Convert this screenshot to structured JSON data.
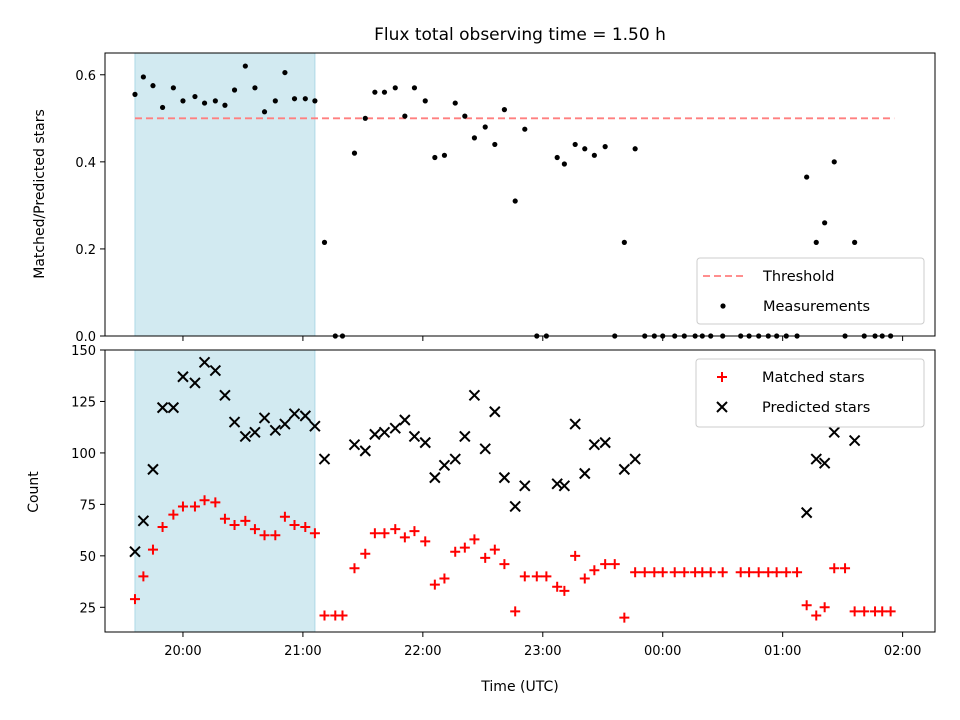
{
  "chart_data": {
    "title": "Flux total observing time = 1.50 h",
    "xlabel": "Time (UTC)",
    "x_ticks": [
      "20:00",
      "21:00",
      "22:00",
      "23:00",
      "00:00",
      "01:00",
      "02:00"
    ],
    "x_tick_hours": [
      20,
      21,
      22,
      23,
      24,
      25,
      26
    ],
    "xlim_hours": [
      19.35,
      26.27
    ],
    "shaded_interval_hours": [
      19.6,
      21.1
    ],
    "shade_color": "#add8e6",
    "panels": [
      {
        "type": "scatter",
        "ylabel": "Matched/Predicted stars",
        "ylim": [
          0,
          0.65
        ],
        "y_ticks": [
          0.0,
          0.2,
          0.4,
          0.6
        ],
        "y_tick_labels": [
          "0.0",
          "0.2",
          "0.4",
          "0.6"
        ],
        "legend_position": "lower-right",
        "threshold": {
          "name": "Threshold",
          "value": 0.5,
          "x_range_hours": [
            19.6,
            25.93
          ],
          "color": "#ff7f7f",
          "style": "dashed"
        },
        "series": [
          {
            "name": "Measurements",
            "color": "#000000",
            "marker": "dot",
            "points": [
              [
                19.6,
                0.555
              ],
              [
                19.67,
                0.595
              ],
              [
                19.75,
                0.575
              ],
              [
                19.83,
                0.525
              ],
              [
                19.92,
                0.57
              ],
              [
                20.0,
                0.54
              ],
              [
                20.1,
                0.55
              ],
              [
                20.18,
                0.535
              ],
              [
                20.27,
                0.54
              ],
              [
                20.35,
                0.53
              ],
              [
                20.43,
                0.565
              ],
              [
                20.52,
                0.62
              ],
              [
                20.6,
                0.57
              ],
              [
                20.68,
                0.515
              ],
              [
                20.77,
                0.54
              ],
              [
                20.85,
                0.605
              ],
              [
                20.93,
                0.545
              ],
              [
                21.02,
                0.545
              ],
              [
                21.1,
                0.54
              ],
              [
                21.18,
                0.215
              ],
              [
                21.27,
                0.0
              ],
              [
                21.33,
                0.0
              ],
              [
                21.43,
                0.42
              ],
              [
                21.52,
                0.5
              ],
              [
                21.6,
                0.56
              ],
              [
                21.68,
                0.56
              ],
              [
                21.77,
                0.57
              ],
              [
                21.85,
                0.505
              ],
              [
                21.93,
                0.57
              ],
              [
                22.02,
                0.54
              ],
              [
                22.1,
                0.41
              ],
              [
                22.18,
                0.415
              ],
              [
                22.27,
                0.535
              ],
              [
                22.35,
                0.505
              ],
              [
                22.43,
                0.455
              ],
              [
                22.52,
                0.48
              ],
              [
                22.6,
                0.44
              ],
              [
                22.68,
                0.52
              ],
              [
                22.77,
                0.31
              ],
              [
                22.85,
                0.475
              ],
              [
                22.95,
                0.0
              ],
              [
                23.03,
                0.0
              ],
              [
                23.12,
                0.41
              ],
              [
                23.18,
                0.395
              ],
              [
                23.27,
                0.44
              ],
              [
                23.35,
                0.43
              ],
              [
                23.43,
                0.415
              ],
              [
                23.52,
                0.435
              ],
              [
                23.6,
                0.0
              ],
              [
                23.68,
                0.215
              ],
              [
                23.77,
                0.43
              ],
              [
                23.85,
                0.0
              ],
              [
                23.93,
                0.0
              ],
              [
                24.0,
                0.0
              ],
              [
                24.1,
                0.0
              ],
              [
                24.18,
                0.0
              ],
              [
                24.27,
                0.0
              ],
              [
                24.33,
                0.0
              ],
              [
                24.4,
                0.0
              ],
              [
                24.5,
                0.0
              ],
              [
                24.65,
                0.0
              ],
              [
                24.72,
                0.0
              ],
              [
                24.8,
                0.0
              ],
              [
                24.88,
                0.0
              ],
              [
                24.95,
                0.0
              ],
              [
                25.03,
                0.0
              ],
              [
                25.12,
                0.0
              ],
              [
                25.2,
                0.365
              ],
              [
                25.28,
                0.215
              ],
              [
                25.35,
                0.26
              ],
              [
                25.43,
                0.4
              ],
              [
                25.52,
                0.0
              ],
              [
                25.6,
                0.215
              ],
              [
                25.68,
                0.0
              ],
              [
                25.77,
                0.0
              ],
              [
                25.83,
                0.0
              ],
              [
                25.9,
                0.0
              ]
            ]
          }
        ]
      },
      {
        "type": "scatter",
        "ylabel": "Count",
        "ylim": [
          13,
          150
        ],
        "y_ticks": [
          25,
          50,
          75,
          100,
          125,
          150
        ],
        "y_tick_labels": [
          "25",
          "50",
          "75",
          "100",
          "125",
          "150"
        ],
        "legend_position": "upper-right",
        "series": [
          {
            "name": "Matched stars",
            "color": "#ff0000",
            "marker": "plus",
            "points": [
              [
                19.6,
                29
              ],
              [
                19.67,
                40
              ],
              [
                19.75,
                53
              ],
              [
                19.83,
                64
              ],
              [
                19.92,
                70
              ],
              [
                20.0,
                74
              ],
              [
                20.1,
                74
              ],
              [
                20.18,
                77
              ],
              [
                20.27,
                76
              ],
              [
                20.35,
                68
              ],
              [
                20.43,
                65
              ],
              [
                20.52,
                67
              ],
              [
                20.6,
                63
              ],
              [
                20.68,
                60
              ],
              [
                20.77,
                60
              ],
              [
                20.85,
                69
              ],
              [
                20.93,
                65
              ],
              [
                21.02,
                64
              ],
              [
                21.1,
                61
              ],
              [
                21.18,
                21
              ],
              [
                21.27,
                21
              ],
              [
                21.33,
                21
              ],
              [
                21.43,
                44
              ],
              [
                21.52,
                51
              ],
              [
                21.6,
                61
              ],
              [
                21.68,
                61
              ],
              [
                21.77,
                63
              ],
              [
                21.85,
                59
              ],
              [
                21.93,
                62
              ],
              [
                22.02,
                57
              ],
              [
                22.1,
                36
              ],
              [
                22.18,
                39
              ],
              [
                22.27,
                52
              ],
              [
                22.35,
                54
              ],
              [
                22.43,
                58
              ],
              [
                22.52,
                49
              ],
              [
                22.6,
                53
              ],
              [
                22.68,
                46
              ],
              [
                22.77,
                23
              ],
              [
                22.85,
                40
              ],
              [
                22.95,
                40
              ],
              [
                23.03,
                40
              ],
              [
                23.12,
                35
              ],
              [
                23.18,
                33
              ],
              [
                23.27,
                50
              ],
              [
                23.35,
                39
              ],
              [
                23.43,
                43
              ],
              [
                23.52,
                46
              ],
              [
                23.6,
                46
              ],
              [
                23.68,
                20
              ],
              [
                23.77,
                42
              ],
              [
                23.85,
                42
              ],
              [
                23.93,
                42
              ],
              [
                24.0,
                42
              ],
              [
                24.1,
                42
              ],
              [
                24.18,
                42
              ],
              [
                24.27,
                42
              ],
              [
                24.33,
                42
              ],
              [
                24.4,
                42
              ],
              [
                24.5,
                42
              ],
              [
                24.65,
                42
              ],
              [
                24.72,
                42
              ],
              [
                24.8,
                42
              ],
              [
                24.88,
                42
              ],
              [
                24.95,
                42
              ],
              [
                25.03,
                42
              ],
              [
                25.12,
                42
              ],
              [
                25.2,
                26
              ],
              [
                25.28,
                21
              ],
              [
                25.35,
                25
              ],
              [
                25.43,
                44
              ],
              [
                25.52,
                44
              ],
              [
                25.6,
                23
              ],
              [
                25.68,
                23
              ],
              [
                25.77,
                23
              ],
              [
                25.83,
                23
              ],
              [
                25.9,
                23
              ]
            ]
          },
          {
            "name": "Predicted stars",
            "color": "#000000",
            "marker": "x",
            "points": [
              [
                19.6,
                52
              ],
              [
                19.67,
                67
              ],
              [
                19.75,
                92
              ],
              [
                19.83,
                122
              ],
              [
                19.92,
                122
              ],
              [
                20.0,
                137
              ],
              [
                20.1,
                134
              ],
              [
                20.18,
                144
              ],
              [
                20.27,
                140
              ],
              [
                20.35,
                128
              ],
              [
                20.43,
                115
              ],
              [
                20.52,
                108
              ],
              [
                20.6,
                110
              ],
              [
                20.68,
                117
              ],
              [
                20.77,
                111
              ],
              [
                20.85,
                114
              ],
              [
                20.93,
                119
              ],
              [
                21.02,
                118
              ],
              [
                21.1,
                113
              ],
              [
                21.18,
                97
              ],
              [
                21.43,
                104
              ],
              [
                21.52,
                101
              ],
              [
                21.6,
                109
              ],
              [
                21.68,
                110
              ],
              [
                21.77,
                112
              ],
              [
                21.85,
                116
              ],
              [
                21.93,
                108
              ],
              [
                22.02,
                105
              ],
              [
                22.1,
                88
              ],
              [
                22.18,
                94
              ],
              [
                22.27,
                97
              ],
              [
                22.35,
                108
              ],
              [
                22.43,
                128
              ],
              [
                22.52,
                102
              ],
              [
                22.6,
                120
              ],
              [
                22.68,
                88
              ],
              [
                22.77,
                74
              ],
              [
                22.85,
                84
              ],
              [
                23.12,
                85
              ],
              [
                23.18,
                84
              ],
              [
                23.27,
                114
              ],
              [
                23.35,
                90
              ],
              [
                23.43,
                104
              ],
              [
                23.52,
                105
              ],
              [
                23.68,
                92
              ],
              [
                23.77,
                97
              ],
              [
                25.2,
                71
              ],
              [
                25.28,
                97
              ],
              [
                25.35,
                95
              ],
              [
                25.43,
                110
              ],
              [
                25.6,
                106
              ]
            ]
          }
        ]
      }
    ]
  }
}
